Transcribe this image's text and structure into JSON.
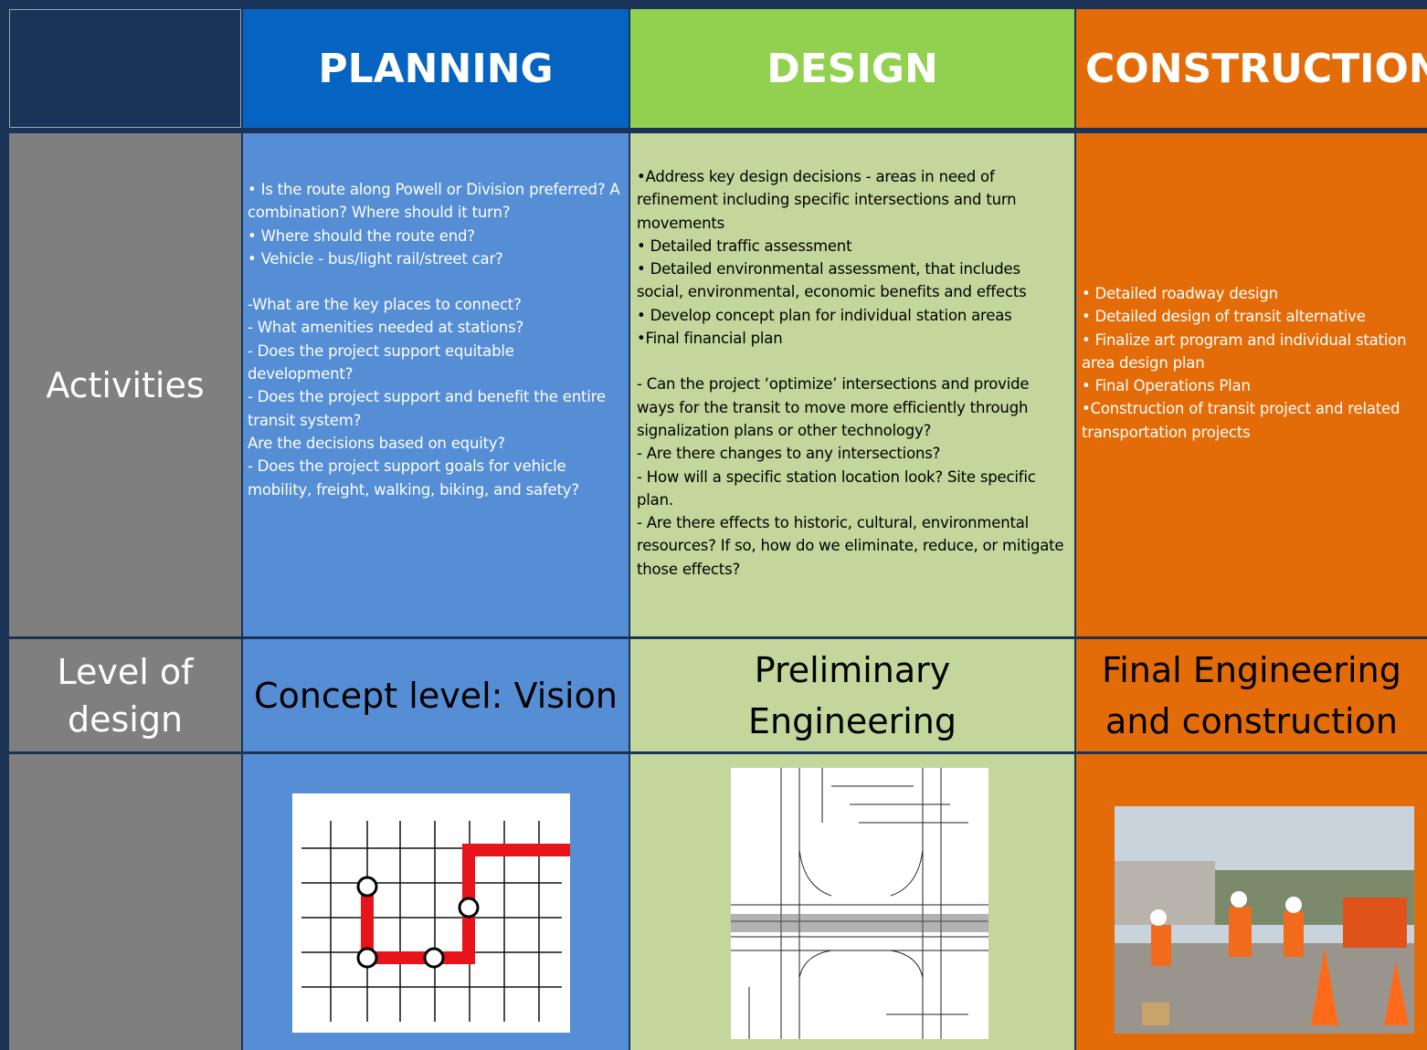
{
  "header": {
    "columns": [
      "PLANNING",
      "DESIGN",
      "CONSTRUCTION"
    ]
  },
  "rows": {
    "activities": {
      "label": "Activities",
      "planning": [
        [
          "• Is the route along Powell or Division preferred? A combination?  Where should it turn?",
          "• Where should the route end?",
          "• Vehicle - bus/light rail/street car?"
        ],
        [
          "-What are the key places to connect?",
          "- What amenities needed at stations?",
          "- Does the  project support equitable development?",
          "- Does the project support and benefit the entire transit system?",
          "Are the decisions based on equity?",
          "- Does  the project support goals for vehicle mobility, freight, walking, biking, and safety?"
        ]
      ],
      "design": [
        [
          "•Address key design decisions - areas in need of refinement including specific intersections and turn movements",
          "• Detailed traffic assessment",
          "• Detailed environmental assessment, that includes social, environmental, economic benefits and effects",
          "• Develop concept plan for individual station areas",
          "•Final financial plan"
        ],
        [
          "- Can the project ‘optimize’ intersections and provide ways for the transit to move more efficiently through signalization plans or other technology?",
          "- Are there changes to any intersections?",
          "- How will a specific station location look? Site specific plan.",
          "- Are there effects to historic, cultural, environmental resources?  If so, how do we eliminate, reduce, or mitigate those effects?"
        ]
      ],
      "construction": [
        [
          "• Detailed roadway design",
          "• Detailed design of transit alternative",
          "• Finalize art program and individual station area design plan",
          "• Final Operations Plan",
          "•Construction of transit project and related transportation projects"
        ]
      ]
    },
    "level_of_design": {
      "label": "Level of design",
      "planning": "Concept level: Vision",
      "design": "Preliminary Engineering",
      "construction": "Final Engineering and construction"
    }
  }
}
